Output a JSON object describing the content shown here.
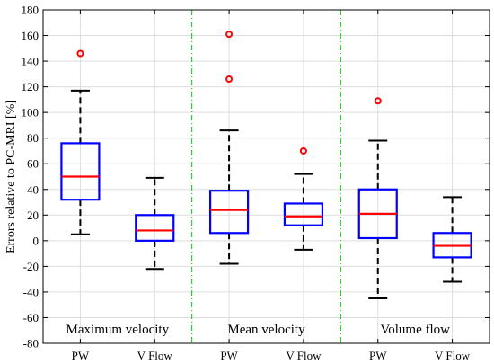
{
  "chart_data": {
    "type": "box",
    "ylabel": "Errors relative to PC-MRI [%]",
    "ylim": [
      -80,
      180
    ],
    "yticks": [
      -80,
      -60,
      -40,
      -20,
      0,
      20,
      40,
      60,
      80,
      100,
      120,
      140,
      160,
      180
    ],
    "grid": true,
    "categories": [
      "PW",
      "V Flow",
      "PW",
      "V Flow",
      "PW",
      "V Flow"
    ],
    "groups": [
      "Maximum velocity",
      "Mean velocity",
      "Volume flow"
    ],
    "boxes": [
      {
        "group": "Maximum velocity",
        "label": "PW",
        "whisker_low": 5,
        "q1": 32,
        "median": 50,
        "q3": 76,
        "whisker_high": 117,
        "outliers": [
          146
        ]
      },
      {
        "group": "Maximum velocity",
        "label": "V Flow",
        "whisker_low": -22,
        "q1": 0,
        "median": 8,
        "q3": 20,
        "whisker_high": 49,
        "outliers": []
      },
      {
        "group": "Mean velocity",
        "label": "PW",
        "whisker_low": -18,
        "q1": 6,
        "median": 24,
        "q3": 39,
        "whisker_high": 86,
        "outliers": [
          126,
          161
        ]
      },
      {
        "group": "Mean velocity",
        "label": "V Flow",
        "whisker_low": -7,
        "q1": 12,
        "median": 19,
        "q3": 29,
        "whisker_high": 52,
        "outliers": [
          70
        ]
      },
      {
        "group": "Volume flow",
        "label": "PW",
        "whisker_low": -45,
        "q1": 2,
        "median": 21,
        "q3": 40,
        "whisker_high": 78,
        "outliers": [
          109
        ]
      },
      {
        "group": "Volume flow",
        "label": "V Flow",
        "whisker_low": -32,
        "q1": -13,
        "median": -4,
        "q3": 6,
        "whisker_high": 34,
        "outliers": []
      }
    ],
    "colors": {
      "box": "#0000ff",
      "median": "#ff0000",
      "whisker": "#000000",
      "outlier": "#ff0000",
      "separator": "#00cc00",
      "grid": "#dddddd"
    }
  }
}
